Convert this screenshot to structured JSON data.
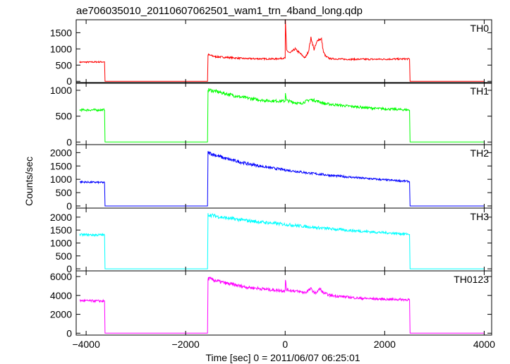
{
  "chart_data": {
    "type": "line",
    "title": "ae706035010_20110607062501_wam1_trn_4band_long.qdp",
    "xlabel": "Time [sec] 0 = 2011/06/07 06:25:01",
    "ylabel": "Counts/sec",
    "xlim": [
      -4200,
      4150
    ],
    "x_ticks": [
      -4000,
      -2000,
      0,
      2000,
      4000
    ],
    "x_tick_labels": [
      "−4000",
      "−2000",
      "0",
      "2000",
      "4000"
    ],
    "grid": false,
    "legend": "none",
    "panels": [
      {
        "name": "TH0",
        "color": "#ff0000",
        "ylim": [
          -60,
          1900
        ],
        "y_ticks": [
          0,
          500,
          1000,
          1500
        ],
        "series": {
          "x": [
            -4130,
            -3630,
            -3620,
            -1560,
            -1550,
            -1400,
            -800,
            -200,
            0,
            5,
            30,
            100,
            200,
            300,
            400,
            470,
            520,
            580,
            660,
            730,
            770,
            820,
            900,
            1200,
            1800,
            2500,
            2510,
            4000
          ],
          "y": [
            590,
            600,
            0,
            0,
            820,
            760,
            700,
            690,
            720,
            1880,
            950,
            870,
            1000,
            860,
            720,
            930,
            1350,
            980,
            1290,
            1300,
            900,
            760,
            700,
            680,
            680,
            690,
            0,
            0
          ]
        }
      },
      {
        "name": "TH1",
        "color": "#00ff00",
        "ylim": [
          -50,
          1150
        ],
        "y_ticks": [
          0,
          500,
          1000
        ],
        "series": {
          "x": [
            -4130,
            -3630,
            -3620,
            -1560,
            -1550,
            -1400,
            -900,
            -400,
            0,
            5,
            30,
            300,
            500,
            620,
            800,
            1200,
            1800,
            2500,
            2510,
            4000
          ],
          "y": [
            620,
            620,
            0,
            0,
            1010,
            980,
            870,
            800,
            790,
            960,
            800,
            740,
            820,
            800,
            740,
            700,
            650,
            620,
            0,
            0
          ]
        }
      },
      {
        "name": "TH2",
        "color": "#0000ff",
        "ylim": [
          -80,
          2300
        ],
        "y_ticks": [
          0,
          500,
          1000,
          1500,
          2000
        ],
        "series": {
          "x": [
            -4130,
            -3630,
            -3620,
            -1560,
            -1550,
            -1200,
            -800,
            -400,
            0,
            500,
            1000,
            1500,
            2000,
            2500,
            2510,
            4000
          ],
          "y": [
            900,
            880,
            0,
            0,
            2000,
            1780,
            1600,
            1460,
            1350,
            1230,
            1130,
            1050,
            980,
            920,
            0,
            0
          ]
        }
      },
      {
        "name": "TH3",
        "color": "#00ffff",
        "ylim": [
          -80,
          2350
        ],
        "y_ticks": [
          0,
          500,
          1000,
          1500,
          2000
        ],
        "series": {
          "x": [
            -4130,
            -3630,
            -3620,
            -1560,
            -1550,
            -1200,
            -600,
            0,
            600,
            1200,
            1800,
            2500,
            2510,
            4000
          ],
          "y": [
            1320,
            1310,
            0,
            0,
            2100,
            1970,
            1830,
            1720,
            1600,
            1500,
            1420,
            1340,
            0,
            0
          ]
        }
      },
      {
        "name": "TH0123",
        "color": "#ff00ff",
        "ylim": [
          -200,
          6600
        ],
        "y_ticks": [
          0,
          2000,
          4000,
          6000
        ],
        "series": {
          "x": [
            -4130,
            -3630,
            -3620,
            -1560,
            -1550,
            -1200,
            -800,
            -300,
            0,
            5,
            30,
            400,
            520,
            600,
            700,
            760,
            900,
            1500,
            2000,
            2500,
            2510,
            4000
          ],
          "y": [
            3450,
            3400,
            0,
            0,
            5800,
            5300,
            4900,
            4600,
            4500,
            5600,
            4600,
            4300,
            4700,
            4200,
            4700,
            4300,
            4000,
            3700,
            3600,
            3550,
            0,
            0
          ]
        }
      }
    ]
  }
}
